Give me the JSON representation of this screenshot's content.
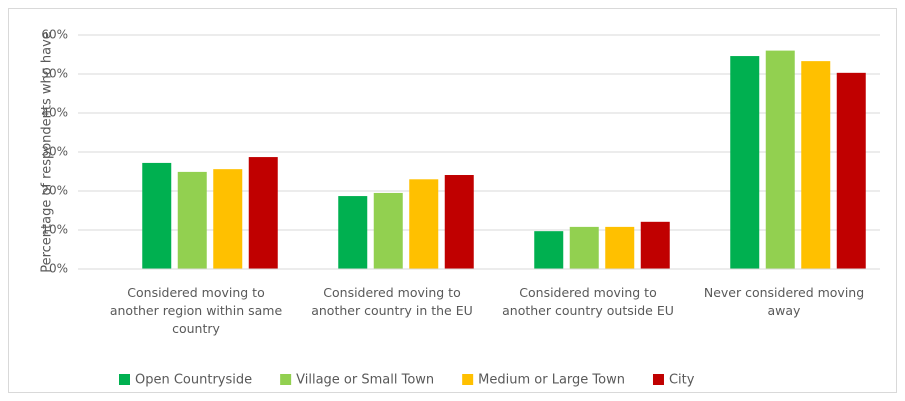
{
  "chart_data": {
    "type": "bar",
    "y_label": "Percentage of respondents who have",
    "categories": [
      "Considered moving to another region within same country",
      "Considered moving to another country in the EU",
      "Considered moving to another country outside EU",
      "Never considered moving away"
    ],
    "series": [
      {
        "name": "Open Countryside",
        "color": "#00b050",
        "values": [
          27.2,
          18.7,
          9.7,
          54.6
        ]
      },
      {
        "name": "Village or Small Town",
        "color": "#92d050",
        "values": [
          24.9,
          19.5,
          10.8,
          56
        ]
      },
      {
        "name": "Medium or Large Town",
        "color": "#ffc000",
        "values": [
          25.6,
          23,
          10.8,
          53.3
        ]
      },
      {
        "name": "City",
        "color": "#c00000",
        "values": [
          28.7,
          24.1,
          12.1,
          50.3
        ]
      }
    ],
    "ylim": [
      0,
      60
    ],
    "yticks": [
      {
        "value": 0,
        "label": "0%"
      },
      {
        "value": 10,
        "label": "10%"
      },
      {
        "value": 20,
        "label": "20%"
      },
      {
        "value": 30,
        "label": "30%"
      },
      {
        "value": 40,
        "label": "40%"
      },
      {
        "value": 50,
        "label": "50%"
      },
      {
        "value": 60,
        "label": "60%"
      }
    ],
    "grid": true,
    "legend": "bottom"
  }
}
